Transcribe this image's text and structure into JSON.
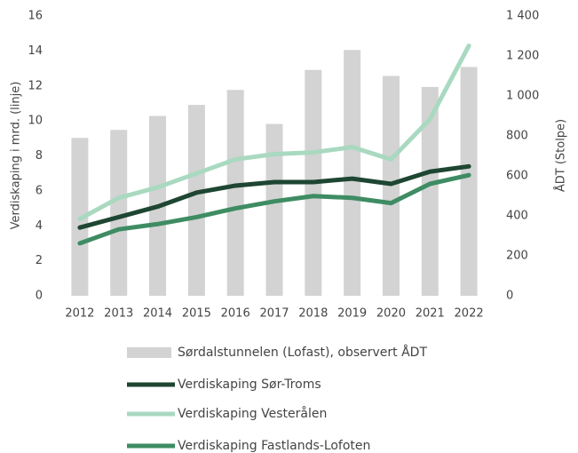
{
  "chart_data": {
    "type": "combo",
    "y_label": "Verdiskaping i mrd. (linje)",
    "y2_label": "ÅDT (Stolpe)",
    "categories": [
      "2012",
      "2013",
      "2014",
      "2015",
      "2016",
      "2017",
      "2018",
      "2019",
      "2020",
      "2021",
      "2022"
    ],
    "ylim": [
      0,
      16
    ],
    "yticks": [
      0,
      2,
      4,
      6,
      8,
      10,
      12,
      14,
      16
    ],
    "y2lim": [
      0,
      1400
    ],
    "y2ticks": [
      0,
      200,
      400,
      600,
      800,
      {
        "value": 1000,
        "label": "1 000"
      },
      {
        "value": 1200,
        "label": "1 200"
      },
      {
        "value": 1400,
        "label": "1 400"
      }
    ],
    "series": [
      {
        "name": "Sørdalstunnelen (Lofast), observert ÅDT",
        "type": "bar",
        "axis": "y2",
        "color": "#d3d3d3",
        "values": [
          790,
          830,
          900,
          955,
          1030,
          860,
          1130,
          1230,
          1100,
          1045,
          1145
        ]
      },
      {
        "name": "Verdiskaping Sør-Troms",
        "type": "line",
        "color": "#1e4632",
        "values": [
          3.9,
          4.5,
          5.1,
          5.9,
          6.3,
          6.5,
          6.5,
          6.7,
          6.4,
          7.1,
          7.4
        ]
      },
      {
        "name": "Verdiskaping Vesterålen",
        "type": "line",
        "color": "#a9d9c0",
        "values": [
          4.4,
          5.6,
          6.2,
          7.0,
          7.8,
          8.1,
          8.2,
          8.5,
          7.8,
          10.1,
          14.3
        ]
      },
      {
        "name": "Verdiskaping Fastlands-Lofoten",
        "type": "line",
        "color": "#3e8c63",
        "values": [
          3.0,
          3.8,
          4.1,
          4.5,
          5.0,
          5.4,
          5.7,
          5.6,
          5.3,
          6.4,
          6.9
        ]
      }
    ]
  }
}
